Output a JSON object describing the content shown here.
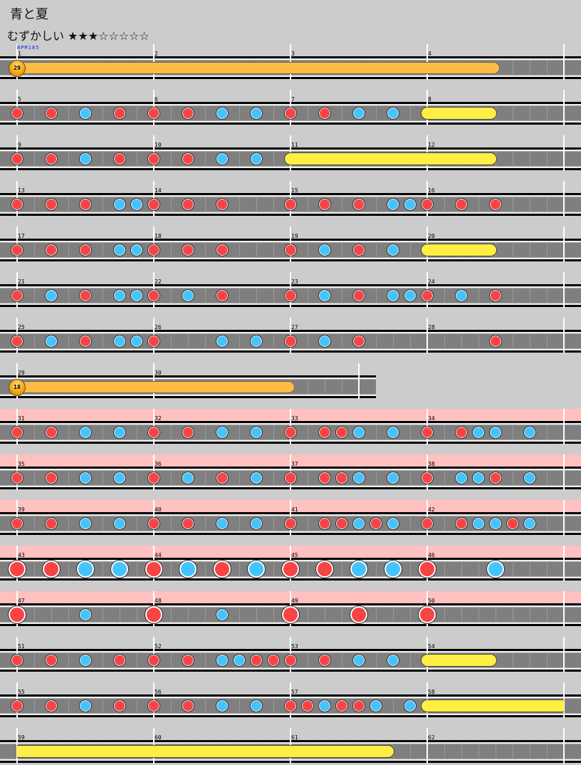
{
  "title": "青と夏",
  "difficulty": {
    "label": "むずかしい",
    "stars_filled": "★★★",
    "stars_empty": "☆☆☆☆☆",
    "level": 3,
    "max_level": 8
  },
  "bpm_label": "BPM185",
  "colors": {
    "don": "#f84444",
    "ka": "#44c4ff",
    "roll": "#ffee44",
    "balloon": "#ffbb44",
    "gogo": "#ffc0c0",
    "bpm": "#1020e0"
  },
  "legend": {
    "1": "don",
    "2": "ka",
    "3": "big-don",
    "4": "big-ka",
    "0": "empty"
  },
  "rows": [
    [
      1,
      2,
      3,
      4
    ],
    [
      5,
      6,
      7,
      8
    ],
    [
      9,
      10,
      11,
      12
    ],
    [
      13,
      14,
      15,
      16
    ],
    [
      17,
      18,
      19,
      20
    ],
    [
      21,
      22,
      23,
      24
    ],
    [
      25,
      26,
      27,
      28
    ],
    [
      29,
      30
    ],
    [
      31,
      32,
      33,
      34
    ],
    [
      35,
      36,
      37,
      38
    ],
    [
      39,
      40,
      41,
      42
    ],
    [
      43,
      44,
      45,
      46
    ],
    [
      47,
      48,
      49,
      50
    ],
    [
      51,
      52,
      53,
      54
    ],
    [
      55,
      56,
      57,
      58
    ],
    [
      59,
      60,
      61,
      62
    ]
  ],
  "measures": {
    "1": "00000000",
    "2": "00000000",
    "3": "00000000",
    "4": "00000000",
    "5": "10102010",
    "6": "10102020",
    "7": "10102020",
    "8": "00000000",
    "9": "10102010",
    "10": "10102020",
    "11": "00000000",
    "12": "00000000",
    "13": "10101022",
    "14": "10101000",
    "15": "10101022",
    "16": "10101000",
    "17": "10101022",
    "18": "10101000",
    "19": "10201020",
    "20": "00000000",
    "21": "10201022",
    "22": "10201000",
    "23": "10201022",
    "24": "10201000",
    "25": "10201022",
    "26": "10002020",
    "27": "10201000",
    "28": "00001000",
    "29": "00000000",
    "30": "000000000000",
    "31": "10102020",
    "32": "10102020",
    "33": "10112020",
    "34": "10122020",
    "35": "10102020",
    "36": "10201020",
    "37": "10112020",
    "38": "10221020",
    "39": "10102020",
    "40": "10102020",
    "41": "10112120",
    "42": "10122120",
    "43": "30304040",
    "44": "30403040",
    "45": "30304040",
    "46": "30004000",
    "47": "30002000",
    "48": "30002000",
    "49": "30003000",
    "50": "30000000",
    "51": "10102010",
    "52": "10102211",
    "53": "10102020",
    "54": "00000000",
    "55": "10102010",
    "56": "10102020",
    "57": "11211202",
    "58": "00000000",
    "59": "00000000",
    "60": "00000000",
    "61": "00000000",
    "62": "00000000"
  },
  "gogo_measures": [
    31,
    32,
    33,
    34,
    35,
    36,
    37,
    38,
    39,
    40,
    41,
    42,
    43,
    44,
    45,
    46,
    47,
    48,
    49,
    50
  ],
  "rolls": [
    {
      "type": "balloon",
      "count": "29",
      "start": [
        1,
        0
      ],
      "end": [
        4,
        4
      ]
    },
    {
      "type": "roll",
      "start": [
        8,
        0
      ],
      "end": [
        8,
        4
      ]
    },
    {
      "type": "roll",
      "start": [
        11,
        0
      ],
      "end": [
        12,
        4
      ]
    },
    {
      "type": "roll",
      "start": [
        20,
        0
      ],
      "end": [
        20,
        4
      ]
    },
    {
      "type": "balloon",
      "count": "18",
      "start": [
        29,
        0
      ],
      "end": [
        30,
        8
      ]
    },
    {
      "type": "roll",
      "start": [
        54,
        0
      ],
      "end": [
        54,
        4
      ]
    },
    {
      "type": "roll",
      "start": [
        58,
        0
      ],
      "end": [
        61,
        6
      ]
    }
  ]
}
